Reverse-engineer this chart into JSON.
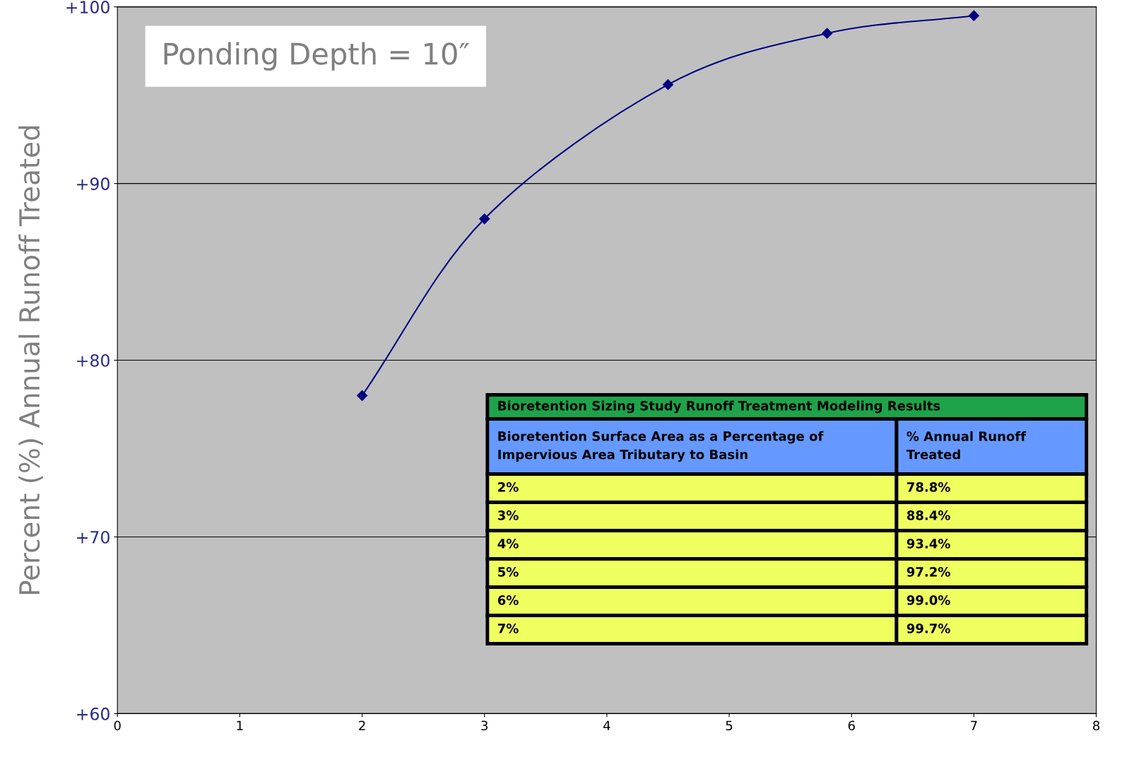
{
  "chart_data": {
    "type": "line",
    "ylabel": "Percent (%) Annual Runoff Treated",
    "x": [
      2,
      3,
      4.5,
      5.8,
      7
    ],
    "series": [
      {
        "color": "#000080",
        "values": [
          78.0,
          88.0,
          95.6,
          98.5,
          99.5
        ]
      }
    ],
    "marker": "diamond",
    "line_style": "solid",
    "xlim": [
      0,
      8
    ],
    "xticks": [
      0,
      1,
      2,
      3,
      4,
      5,
      6,
      7,
      8
    ],
    "ylim": [
      60,
      100
    ],
    "yticks": [
      {
        "value": 60,
        "label": "+60"
      },
      {
        "value": 70,
        "label": "+70"
      },
      {
        "value": 80,
        "label": "+80"
      },
      {
        "value": 90,
        "label": "+90"
      },
      {
        "value": 100,
        "label": "+100"
      }
    ],
    "grid": "y",
    "legend": false,
    "annotations": [
      "Ponding Depth = 10″",
      "Bioretention Sizing Study Runoff Treatment Modeling Results",
      "Bioretention Surface Area as a Percentage of\nImpervious Area Tributary to Basin",
      "% Annual Runoff\nTreated",
      "2%",
      "78.8%",
      "3%",
      "88.4%",
      "4%",
      "93.4%",
      "5%",
      "97.2%",
      "6%",
      "99.0%",
      "7%",
      "99.7%"
    ]
  }
}
